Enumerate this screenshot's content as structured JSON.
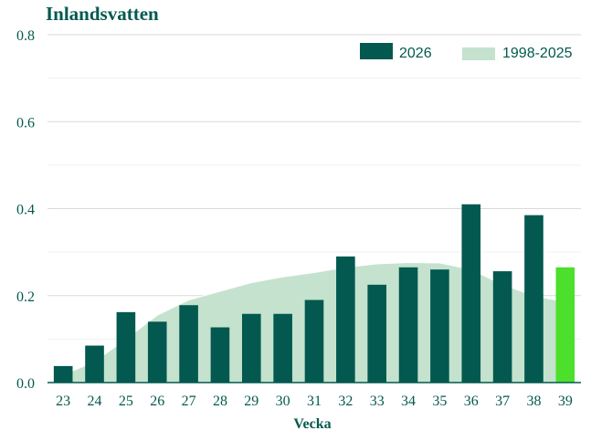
{
  "chart_data": {
    "type": "bar",
    "title": "Inlandsvatten",
    "xlabel": "Vecka",
    "ylabel": "",
    "ylim": [
      0,
      0.8
    ],
    "yticks": [
      "0.0",
      "0.2",
      "0.4",
      "0.6",
      "0.8"
    ],
    "ytick_values": [
      0,
      0.2,
      0.4,
      0.6,
      0.8
    ],
    "grid": true,
    "legend_position": "top-right",
    "categories": [
      "23",
      "24",
      "25",
      "26",
      "27",
      "28",
      "29",
      "30",
      "31",
      "32",
      "33",
      "34",
      "35",
      "36",
      "37",
      "38",
      "39"
    ],
    "series": [
      {
        "name": "2026",
        "kind": "bar",
        "color": "#03594f",
        "highlight_color": "#4ce02c",
        "highlight_category": "39",
        "values": [
          0.038,
          0.085,
          0.162,
          0.14,
          0.178,
          0.127,
          0.158,
          0.158,
          0.19,
          0.29,
          0.225,
          0.265,
          0.26,
          0.41,
          0.256,
          0.385,
          0.265
        ]
      },
      {
        "name": "1998-2025",
        "kind": "area",
        "color": "#c5e2cf",
        "line_color": "#ffffff",
        "values": [
          0.018,
          0.048,
          0.1,
          0.155,
          0.19,
          0.21,
          0.23,
          0.243,
          0.253,
          0.265,
          0.273,
          0.276,
          0.275,
          0.26,
          0.225,
          0.2,
          0.185
        ]
      }
    ]
  }
}
